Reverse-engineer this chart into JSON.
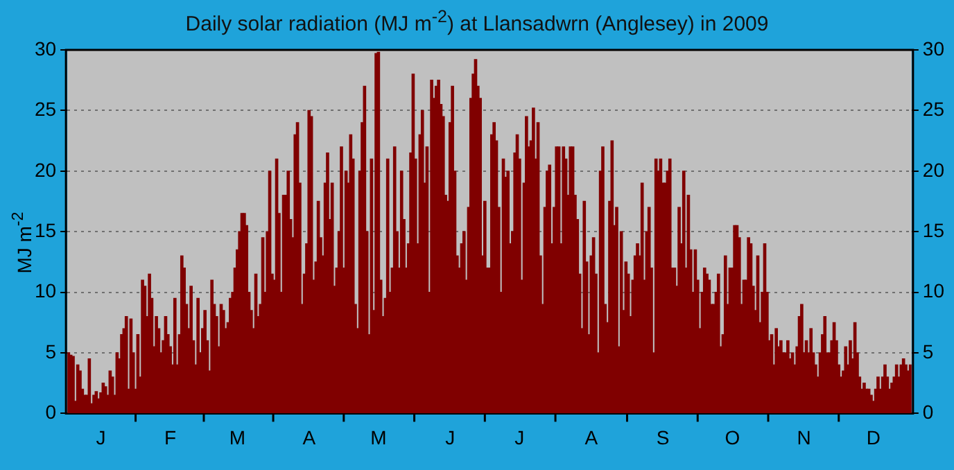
{
  "chart_data": {
    "type": "bar",
    "title": "Daily solar radiation (MJ m$^{-2}$) at Llansadwrn (Anglesey) in 2009",
    "ylabel": "MJ m$^{-2}$",
    "categories": [
      null,
      null,
      null,
      null,
      null,
      null,
      null,
      null,
      null,
      null,
      null,
      null,
      null,
      null,
      "J",
      null,
      null,
      null,
      null,
      null,
      null,
      null,
      null,
      null,
      null,
      null,
      null,
      null,
      null,
      null,
      null,
      null,
      null,
      null,
      null,
      null,
      null,
      null,
      null,
      null,
      null,
      null,
      null,
      null,
      "F",
      null,
      null,
      null,
      null,
      null,
      null,
      null,
      null,
      null,
      null,
      null,
      null,
      null,
      null,
      null,
      null,
      null,
      null,
      null,
      null,
      null,
      null,
      null,
      null,
      null,
      null,
      null,
      null,
      "M",
      null,
      null,
      null,
      null,
      null,
      null,
      null,
      null,
      null,
      null,
      null,
      null,
      null,
      null,
      null,
      null,
      null,
      null,
      null,
      null,
      null,
      null,
      null,
      null,
      null,
      null,
      null,
      null,
      null,
      null,
      "A",
      null,
      null,
      null,
      null,
      null,
      null,
      null,
      null,
      null,
      null,
      null,
      null,
      null,
      null,
      null,
      null,
      null,
      null,
      null,
      null,
      null,
      null,
      null,
      null,
      null,
      null,
      null,
      null,
      null,
      "M",
      null,
      null,
      null,
      null,
      null,
      null,
      null,
      null,
      null,
      null,
      null,
      null,
      null,
      null,
      null,
      null,
      null,
      null,
      null,
      null,
      null,
      null,
      null,
      null,
      null,
      null,
      null,
      null,
      null,
      null,
      "J",
      null,
      null,
      null,
      null,
      null,
      null,
      null,
      null,
      null,
      null,
      null,
      null,
      null,
      null,
      null,
      null,
      null,
      null,
      null,
      null,
      null,
      null,
      null,
      null,
      null,
      null,
      null,
      null,
      null,
      "J",
      null,
      null,
      null,
      null,
      null,
      null,
      null,
      null,
      null,
      null,
      null,
      null,
      null,
      null,
      null,
      null,
      null,
      null,
      null,
      null,
      null,
      null,
      null,
      null,
      null,
      null,
      null,
      null,
      null,
      null,
      "A",
      null,
      null,
      null,
      null,
      null,
      null,
      null,
      null,
      null,
      null,
      null,
      null,
      null,
      null,
      null,
      null,
      null,
      null,
      null,
      null,
      null,
      null,
      null,
      null,
      null,
      null,
      null,
      null,
      null,
      null,
      "S",
      null,
      null,
      null,
      null,
      null,
      null,
      null,
      null,
      null,
      null,
      null,
      null,
      null,
      null,
      null,
      null,
      null,
      null,
      null,
      null,
      null,
      null,
      null,
      null,
      null,
      null,
      null,
      null,
      null,
      "O",
      null,
      null,
      null,
      null,
      null,
      null,
      null,
      null,
      null,
      null,
      null,
      null,
      null,
      null,
      null,
      null,
      null,
      null,
      null,
      null,
      null,
      null,
      null,
      null,
      null,
      null,
      null,
      null,
      null,
      null,
      "N",
      null,
      null,
      null,
      null,
      null,
      null,
      null,
      null,
      null,
      null,
      null,
      null,
      null,
      null,
      null,
      null,
      null,
      null,
      null,
      null,
      null,
      null,
      null,
      null,
      null,
      null,
      null,
      null,
      null,
      "D",
      null,
      null,
      null,
      null,
      null,
      null,
      null,
      null,
      null,
      null,
      null,
      null,
      null,
      null,
      null,
      null
    ],
    "values": [
      5,
      4.8,
      4.7,
      1,
      4,
      3.5,
      2,
      1.5,
      1.5,
      4.5,
      0.8,
      1.5,
      1.8,
      1.2,
      1.7,
      2.5,
      2.2,
      1.5,
      3.5,
      3,
      1.5,
      5,
      4.5,
      6.5,
      7,
      8,
      2,
      7.8,
      5,
      2,
      6.5,
      3,
      11,
      10.5,
      8,
      11.5,
      9.5,
      5.5,
      8,
      7,
      5,
      6,
      8,
      6.5,
      5.5,
      4,
      9.5,
      4,
      6.5,
      13,
      12,
      9,
      7,
      10.5,
      6,
      4,
      9.5,
      5,
      7,
      8.5,
      6,
      3.5,
      11,
      9,
      8,
      5.5,
      9,
      8.5,
      7,
      7.5,
      9.5,
      10,
      12,
      13.5,
      15,
      16.5,
      16.5,
      15.5,
      10,
      8.5,
      7,
      11.5,
      8,
      9,
      14.5,
      10,
      15,
      20,
      11.5,
      11,
      21,
      16.5,
      10,
      18,
      18,
      20,
      16,
      14.5,
      23,
      24,
      19,
      9,
      11.5,
      14,
      25,
      24.5,
      11,
      12.5,
      17.5,
      14.5,
      13,
      19,
      21.5,
      16,
      19,
      10.5,
      12,
      15,
      22,
      12,
      20,
      19,
      23,
      21,
      9,
      7,
      20,
      24,
      27,
      15,
      6.5,
      21,
      8.5,
      29.7,
      29.8,
      11,
      8,
      9.5,
      21,
      10,
      12,
      22,
      15,
      12,
      20,
      16,
      12,
      14,
      21.5,
      28,
      21,
      14,
      23,
      25,
      19,
      22,
      10,
      27.5,
      26,
      27,
      27.5,
      25.5,
      24.5,
      18,
      17.5,
      24,
      27,
      20,
      13,
      12,
      14,
      15,
      11,
      17,
      26,
      28,
      29.2,
      27,
      26,
      13,
      17.5,
      12,
      12,
      23,
      24,
      22.5,
      17,
      10,
      21,
      19.5,
      20,
      14,
      15,
      21.5,
      23,
      21,
      11,
      19,
      24.5,
      22,
      22.5,
      25.2,
      21,
      24,
      13,
      9,
      17,
      20,
      20.5,
      14,
      17,
      22,
      22,
      14,
      22,
      21,
      18,
      22,
      22,
      18,
      16,
      11.5,
      7,
      17.5,
      12.5,
      6.5,
      13,
      14.5,
      11.5,
      5,
      20,
      22,
      9,
      7.5,
      17.5,
      22.5,
      15.5,
      17,
      5.5,
      15,
      8.5,
      12.5,
      11.5,
      8,
      11,
      13,
      14,
      13,
      19,
      11,
      15,
      17,
      12,
      5,
      21,
      20,
      21,
      19,
      19,
      20,
      21,
      12,
      12,
      10.5,
      17,
      14,
      20,
      12,
      18,
      13.5,
      10,
      13.5,
      11,
      7,
      10,
      12,
      11.5,
      11,
      9,
      9,
      10,
      11.5,
      5.5,
      6.5,
      13,
      9,
      12,
      12,
      15.5,
      15.5,
      14.5,
      9,
      11,
      11,
      14.5,
      14,
      10.5,
      8.5,
      13,
      7.5,
      10,
      14,
      10,
      6,
      6.5,
      4,
      7,
      5.5,
      6,
      5,
      5,
      6,
      4.5,
      5,
      4,
      5.5,
      8,
      9,
      5,
      6,
      5,
      7,
      5,
      4,
      3,
      5,
      6.5,
      8,
      5,
      5,
      6,
      7.5,
      6,
      4,
      3,
      3.5,
      5.5,
      4,
      6,
      4.5,
      7.5,
      5,
      3,
      2,
      2.5,
      2,
      2,
      1.5,
      1,
      2,
      3,
      2,
      3,
      4,
      3,
      2,
      2.5,
      3,
      4,
      3,
      4,
      4.5,
      4,
      3.5,
      4
    ],
    "color": "#800000",
    "ylim": [
      0,
      30
    ],
    "yticks": [
      0,
      5,
      10,
      15,
      20,
      25,
      30
    ],
    "y2lim": [
      0,
      30
    ],
    "y2ticks": [
      0,
      5,
      10,
      15,
      20,
      25,
      30
    ],
    "grid": "y"
  }
}
